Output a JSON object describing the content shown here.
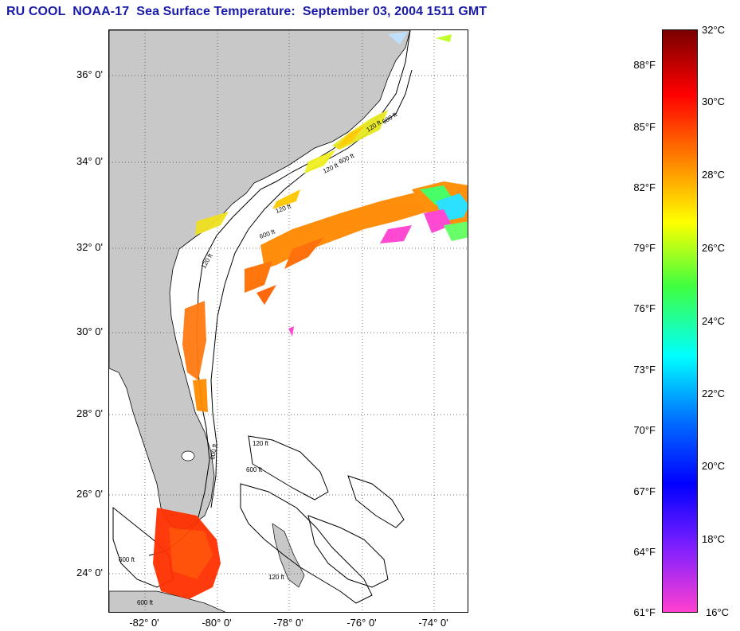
{
  "title": "RU COOL  NOAA-17  Sea Surface Temperature:  September 03, 2004 1511 GMT",
  "map": {
    "lat_ticks": [
      "36° 0'",
      "34° 0'",
      "32° 0'",
      "30° 0'",
      "28° 0'",
      "26° 0'",
      "24° 0'"
    ],
    "lon_ticks": [
      "-82° 0'",
      "-80° 0'",
      "-78° 0'",
      "-76° 0'",
      "-74° 0'"
    ],
    "contour_labels": [
      "600 ft",
      "120 ft",
      "120 ft",
      "600 ft",
      "120 ft",
      "600 ft",
      "600 ft",
      "120 ft",
      "600 ft",
      "120 ft",
      "120 ft",
      "600 ft",
      "600 ft"
    ],
    "land_color": "#c8c8c8",
    "ocean_color": "#ffffff"
  },
  "colorbar": {
    "celsius_labels": [
      "32°C",
      "30°C",
      "28°C",
      "26°C",
      "24°C",
      "22°C",
      "20°C",
      "18°C",
      "16°C"
    ],
    "fahrenheit_labels": [
      "88°F",
      "85°F",
      "82°F",
      "79°F",
      "76°F",
      "73°F",
      "70°F",
      "67°F",
      "64°F",
      "61°F"
    ],
    "colors": [
      "#7a0000",
      "#ff0000",
      "#ff7f00",
      "#ffff00",
      "#40ff40",
      "#00ffff",
      "#0070ff",
      "#0000ff",
      "#8020ff",
      "#ff40d0"
    ]
  }
}
